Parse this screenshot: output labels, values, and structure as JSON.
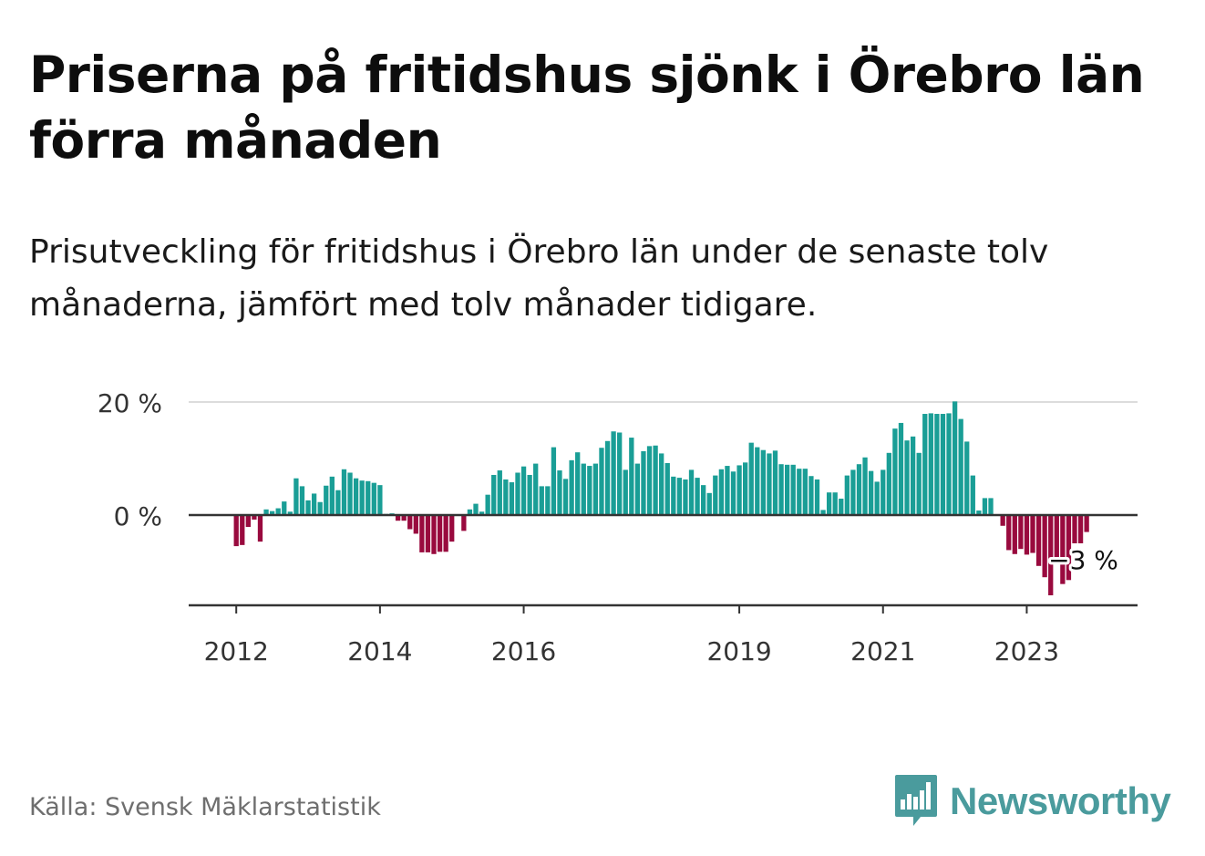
{
  "header": {
    "title": "Priserna på fritidshus sjönk i Örebro län förra månaden",
    "subtitle": "Prisutveckling för fritidshus i Örebro län under de senaste tolv månaderna, jämfört med tolv månader tidigare."
  },
  "footer": {
    "source": "Källa: Svensk Mäklarstatistik",
    "brand": "Newsworthy",
    "brand_icon": "bar-chart-speech-bubble-icon",
    "brand_color": "#4a9b9d"
  },
  "colors": {
    "positive": "#1a9e96",
    "negative": "#990a3e",
    "gridline": "#dcdcdc",
    "axis": "#333333"
  },
  "chart_data": {
    "type": "bar",
    "title": "",
    "xlabel": "",
    "ylabel": "",
    "ylim": [
      -16,
      20
    ],
    "yticks": [
      0,
      20
    ],
    "ytick_labels": [
      "0 %",
      "20 %"
    ],
    "x_start": "2012-01",
    "x_tick_labels": [
      "2012",
      "2014",
      "2016",
      "2019",
      "2021",
      "2023"
    ],
    "x_tick_months": [
      "2012-01",
      "2014-01",
      "2016-01",
      "2019-01",
      "2021-01",
      "2023-01"
    ],
    "last_value_label": "−3 %",
    "series": [
      {
        "values": [
          -5.5,
          -5.3,
          -2.1,
          -0.8,
          -4.7,
          1.0,
          0.7,
          1.2,
          2.4,
          0.6,
          6.5,
          5.1,
          2.6,
          3.8,
          2.3,
          5.2,
          6.8,
          4.4,
          8.1,
          7.5,
          6.5,
          6.1,
          6.0,
          5.7,
          5.3,
          0.2,
          0.3,
          -1.0,
          -1.0,
          -2.5,
          -3.3,
          -6.6,
          -6.6,
          -6.9,
          -6.5,
          -6.5,
          -4.7,
          0.0,
          -2.8,
          1.0,
          2.0,
          0.6,
          3.6,
          7.1,
          7.9,
          6.3,
          5.8,
          7.5,
          8.6,
          7.1,
          9.1,
          5.1,
          5.1,
          12.0,
          7.9,
          6.4,
          9.7,
          11.1,
          9.1,
          8.7,
          9.1,
          11.9,
          13.1,
          14.8,
          14.6,
          8.0,
          13.7,
          9.1,
          11.3,
          12.2,
          12.3,
          10.9,
          9.2,
          6.8,
          6.6,
          6.3,
          8.0,
          6.6,
          5.3,
          3.9,
          7.0,
          8.1,
          8.7,
          7.7,
          8.8,
          9.3,
          12.8,
          12.0,
          11.5,
          10.9,
          11.4,
          9.0,
          8.9,
          8.9,
          8.2,
          8.2,
          6.9,
          6.3,
          0.9,
          4.0,
          4.0,
          2.9,
          7.0,
          8.0,
          9.0,
          10.2,
          7.8,
          5.9,
          8.0,
          11.0,
          15.3,
          16.3,
          13.2,
          13.9,
          11.0,
          17.9,
          18.0,
          17.9,
          17.9,
          18.0,
          20.1,
          17.0,
          13.0,
          7.0,
          0.8,
          3.0,
          3.0,
          0.0,
          -1.9,
          -6.2,
          -6.9,
          -6.0,
          -7.0,
          -6.7,
          -9.0,
          -11.0,
          -14.2,
          -8.0,
          -12.2,
          -11.5,
          -5.0,
          -5.0,
          -3.0
        ]
      }
    ]
  }
}
